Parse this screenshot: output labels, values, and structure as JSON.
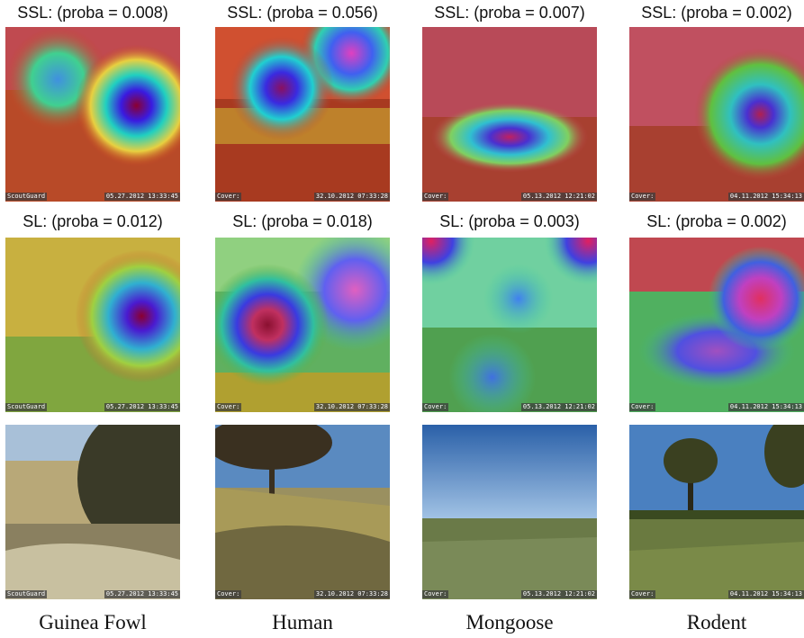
{
  "columns": [
    {
      "class_name": "Guinea Fowl",
      "ssl_label": "SSL: (proba = 0.008)",
      "sl_label": "SL: (proba = 0.012)",
      "stamp_left": "ScoutGuard",
      "stamp_right": "05.27.2012 13:33:45"
    },
    {
      "class_name": "Human",
      "ssl_label": "SSL: (proba = 0.056)",
      "sl_label": "SL: (proba = 0.018)",
      "stamp_left": "Cover:",
      "stamp_right": "32.10.2012 07:33:28"
    },
    {
      "class_name": "Mongoose",
      "ssl_label": "SSL: (proba = 0.007)",
      "sl_label": "SL: (proba = 0.003)",
      "stamp_left": "Cover:",
      "stamp_right": "05.13.2012 12:21:02"
    },
    {
      "class_name": "Rodent",
      "ssl_label": "SSL: (proba = 0.002)",
      "sl_label": "SL: (proba = 0.002)",
      "stamp_left": "Cover:",
      "stamp_right": "04.11.2012 15:34:13"
    }
  ]
}
